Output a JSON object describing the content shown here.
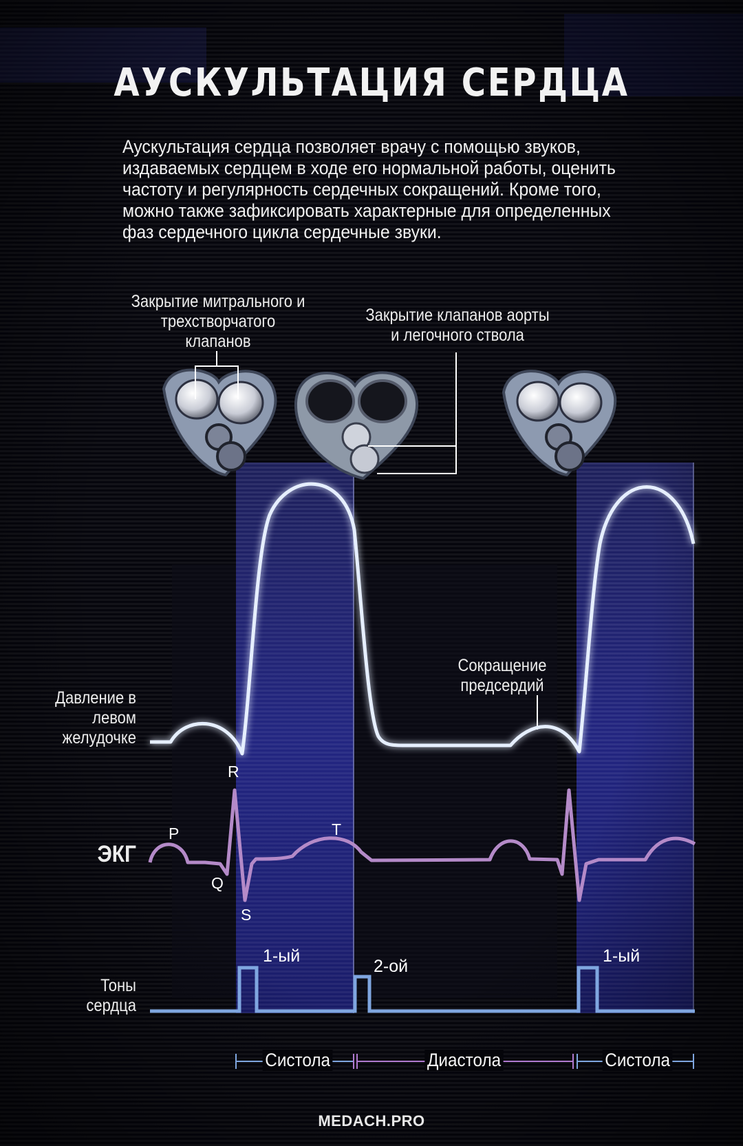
{
  "title": "АУСКУЛЬТАЦИЯ СЕРДЦА",
  "intro": "Аускультация сердца позволяет врачу с помощью звуков, издаваемых сердцем в ходе его нормальной работы, оценить частоту и регулярность сердечных сокращений. Кроме того, можно также зафиксировать характерные для определенных фаз сердечного цикла сердечные звуки.",
  "labels": {
    "mitral": "Закрытие митрального и трехстворчатого клапанов",
    "aortic": "Закрытие клапанов аорты и легочного ствола",
    "pressure": "Давление в левом желудочке",
    "atrial": "Сокращение предсердий",
    "ecg": "ЭКГ",
    "sounds": "Тоны сердца"
  },
  "ecg_waves": {
    "p": "P",
    "q": "Q",
    "r": "R",
    "s": "S",
    "t": "T"
  },
  "heart_sounds": {
    "first": "1-ый",
    "second": "2-ой",
    "first_again": "1-ый"
  },
  "phases": {
    "systole": "Систола",
    "diastole": "Диастола",
    "systole_again": "Систола"
  },
  "credit": "MEDACH.PRO",
  "colors": {
    "pressure_curve": "#e6efff",
    "ecg_curve": "#b48ac8",
    "sounds_curve": "#7fa6e0",
    "systole_band": "#2a2e8c",
    "diastole_line": "#b07ad0"
  }
}
